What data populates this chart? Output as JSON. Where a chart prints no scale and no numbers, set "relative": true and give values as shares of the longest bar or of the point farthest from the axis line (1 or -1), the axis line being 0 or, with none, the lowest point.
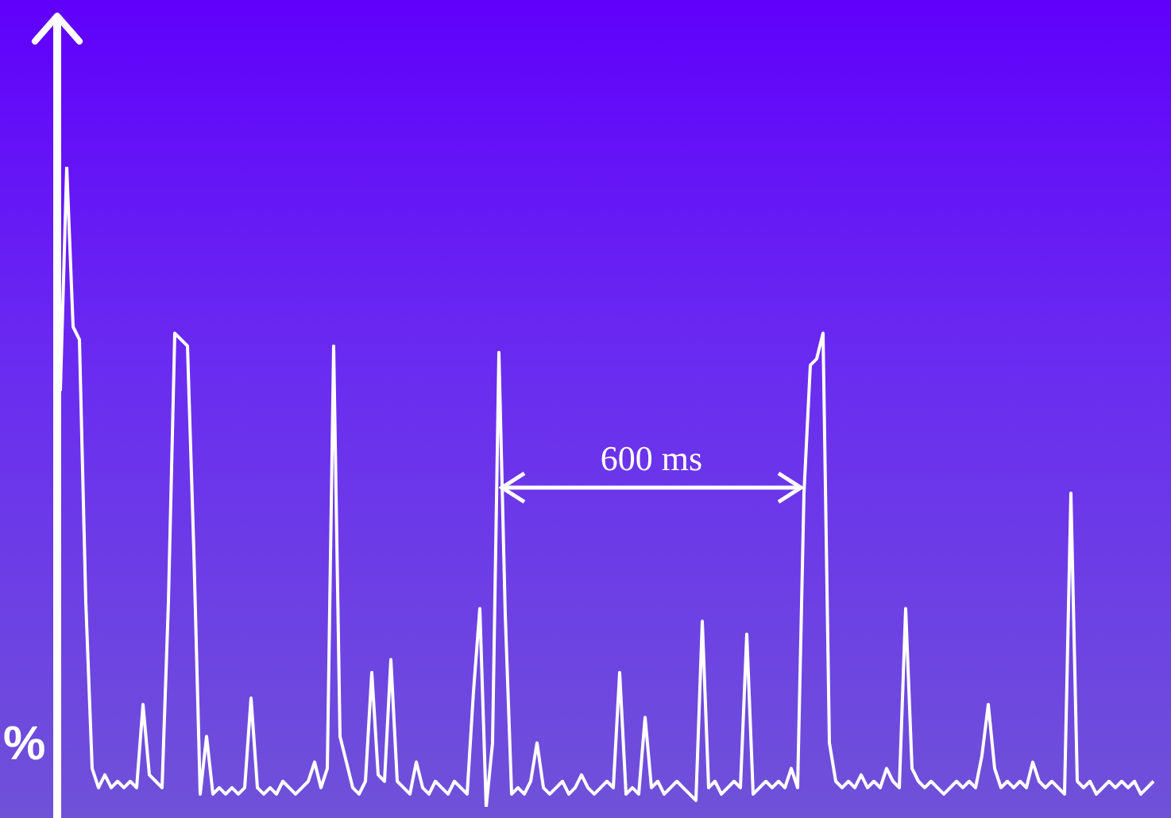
{
  "chart_data": {
    "type": "line",
    "relative": true,
    "ylabel": "%",
    "annotations": [
      "600 ms"
    ],
    "marker": "none",
    "grid": false,
    "legend": false,
    "categories": [
      null,
      null,
      null,
      null,
      null,
      null,
      null,
      null,
      null,
      null,
      null,
      null,
      null,
      null,
      null,
      null,
      null,
      null,
      null,
      null,
      null,
      null,
      null,
      null,
      null,
      null,
      null,
      null,
      null,
      null,
      null,
      null,
      null,
      null,
      null,
      null,
      null,
      null,
      null,
      null,
      null,
      null,
      null,
      null,
      null,
      null,
      null,
      null,
      null,
      null,
      null,
      null,
      null,
      null,
      null,
      null,
      null,
      null,
      null,
      null,
      null,
      null,
      null,
      null,
      null,
      null,
      null,
      null,
      null,
      null,
      null,
      null,
      null,
      null,
      null,
      null,
      null,
      null,
      null,
      null,
      null,
      null,
      null,
      null,
      null,
      null,
      null,
      null,
      null,
      null,
      null,
      null,
      null,
      null,
      null,
      null,
      null,
      null,
      null,
      null,
      null,
      null,
      null,
      null,
      null,
      null,
      null,
      null,
      null,
      null,
      null,
      null,
      null,
      null,
      null,
      null,
      null,
      null,
      null,
      null,
      null,
      null,
      null,
      null,
      null,
      null,
      null,
      null,
      null,
      null,
      null,
      null,
      null,
      null,
      null,
      null,
      null,
      null,
      null,
      null,
      null,
      null,
      null,
      null,
      null,
      null,
      null,
      null,
      null,
      null,
      null,
      null,
      null,
      null,
      null,
      null,
      null,
      null,
      null,
      null,
      null,
      null,
      null,
      null,
      null,
      null,
      null,
      null,
      null,
      null,
      null,
      null,
      null
    ],
    "series": [
      {
        "color": "#ffffff",
        "values": [
          0.65,
          1.0,
          0.75,
          0.73,
          0.32,
          0.06,
          0.03,
          0.05,
          0.03,
          0.04,
          0.03,
          0.04,
          0.03,
          0.16,
          0.05,
          0.04,
          0.03,
          0.32,
          0.74,
          0.73,
          0.72,
          0.4,
          0.02,
          0.11,
          0.02,
          0.03,
          0.02,
          0.03,
          0.02,
          0.03,
          0.17,
          0.03,
          0.02,
          0.03,
          0.02,
          0.04,
          0.03,
          0.02,
          0.03,
          0.04,
          0.07,
          0.03,
          0.06,
          0.72,
          0.11,
          0.07,
          0.03,
          0.02,
          0.04,
          0.21,
          0.05,
          0.04,
          0.23,
          0.04,
          0.03,
          0.02,
          0.07,
          0.03,
          0.02,
          0.04,
          0.03,
          0.02,
          0.04,
          0.03,
          0.02,
          0.18,
          0.31,
          0.0,
          0.1,
          0.71,
          0.3,
          0.02,
          0.03,
          0.02,
          0.04,
          0.1,
          0.03,
          0.02,
          0.03,
          0.04,
          0.02,
          0.03,
          0.05,
          0.03,
          0.02,
          0.03,
          0.04,
          0.03,
          0.21,
          0.02,
          0.03,
          0.02,
          0.14,
          0.03,
          0.04,
          0.02,
          0.03,
          0.04,
          0.03,
          0.02,
          0.01,
          0.29,
          0.03,
          0.04,
          0.02,
          0.03,
          0.04,
          0.03,
          0.27,
          0.02,
          0.03,
          0.04,
          0.03,
          0.04,
          0.03,
          0.06,
          0.03,
          0.49,
          0.69,
          0.7,
          0.74,
          0.1,
          0.04,
          0.03,
          0.04,
          0.03,
          0.05,
          0.03,
          0.04,
          0.03,
          0.06,
          0.04,
          0.03,
          0.31,
          0.06,
          0.04,
          0.03,
          0.04,
          0.03,
          0.02,
          0.03,
          0.04,
          0.03,
          0.04,
          0.03,
          0.08,
          0.16,
          0.06,
          0.03,
          0.04,
          0.03,
          0.04,
          0.03,
          0.07,
          0.04,
          0.03,
          0.04,
          0.03,
          0.02,
          0.49,
          0.04,
          0.03,
          0.04,
          0.02,
          0.03,
          0.04,
          0.03,
          0.04,
          0.03,
          0.04,
          0.02,
          0.03,
          0.04
        ]
      }
    ]
  }
}
